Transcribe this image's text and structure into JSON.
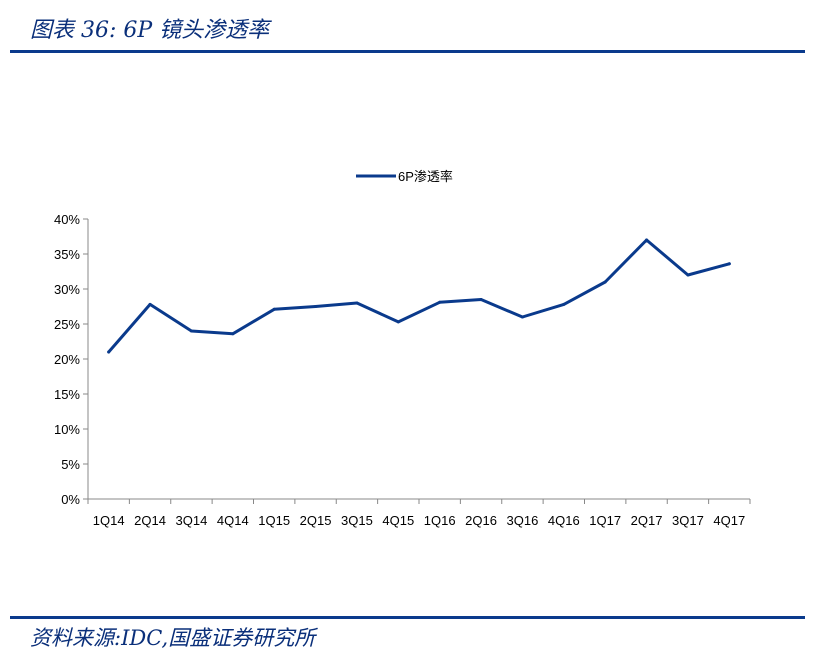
{
  "header": {
    "title": "图表 36:  6P 镜头渗透率"
  },
  "footer": {
    "source": "资料来源:IDC,国盛证券研究所"
  },
  "chart_data": {
    "type": "line",
    "categories": [
      "1Q14",
      "2Q14",
      "3Q14",
      "4Q14",
      "1Q15",
      "2Q15",
      "3Q15",
      "4Q15",
      "1Q16",
      "2Q16",
      "3Q16",
      "4Q16",
      "1Q17",
      "2Q17",
      "3Q17",
      "4Q17"
    ],
    "series": [
      {
        "name": "6P渗透率",
        "values": [
          21.0,
          27.8,
          24.0,
          23.6,
          27.1,
          27.5,
          28.0,
          25.3,
          28.1,
          28.5,
          26.0,
          27.8,
          31.0,
          37.0,
          32.0,
          33.6
        ],
        "color": "#0a3a8c"
      }
    ],
    "ylim": [
      0,
      40
    ],
    "yticks": [
      "0%",
      "5%",
      "10%",
      "15%",
      "20%",
      "25%",
      "30%",
      "35%",
      "40%"
    ],
    "ytick_values": [
      0,
      5,
      10,
      15,
      20,
      25,
      30,
      35,
      40
    ],
    "legend_position": "top-center",
    "grid": false
  }
}
